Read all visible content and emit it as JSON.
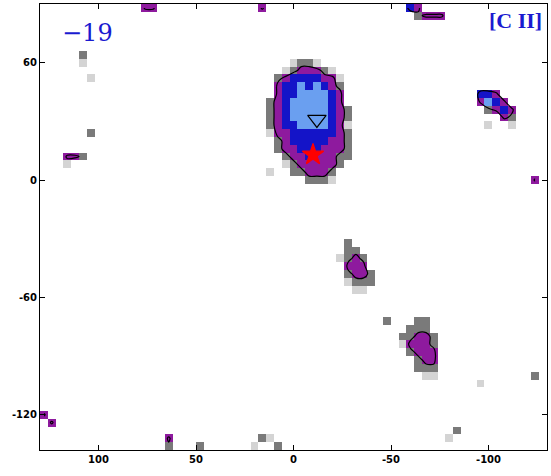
{
  "chart_data": {
    "type": "heatmap",
    "annotations": [
      "−19",
      "[C II]"
    ],
    "xlim": [
      130,
      -130
    ],
    "ylim": [
      -138,
      90
    ],
    "xticks": [
      100,
      50,
      0,
      -50,
      -100
    ],
    "yticks": [
      60,
      0,
      -60,
      -120
    ],
    "zlim": [
      0.5,
      5.5
    ],
    "contour_levels": [
      2.5
    ],
    "grid": false,
    "cells": [
      [
        0,
        60,
        1
      ],
      [
        -4,
        60,
        2
      ],
      [
        -8,
        60,
        2
      ],
      [
        -12,
        60,
        1
      ],
      [
        4,
        56,
        1
      ],
      [
        0,
        56,
        2
      ],
      [
        -4,
        56,
        3
      ],
      [
        -8,
        56,
        3
      ],
      [
        -12,
        56,
        3
      ],
      [
        -16,
        56,
        2
      ],
      [
        -20,
        56,
        1
      ],
      [
        8,
        52,
        2
      ],
      [
        4,
        52,
        3
      ],
      [
        0,
        52,
        4
      ],
      [
        -4,
        52,
        4
      ],
      [
        -8,
        52,
        4
      ],
      [
        -12,
        52,
        4
      ],
      [
        -16,
        52,
        3
      ],
      [
        -20,
        52,
        3
      ],
      [
        -24,
        52,
        1
      ],
      [
        8,
        48,
        3
      ],
      [
        4,
        48,
        4
      ],
      [
        0,
        48,
        4
      ],
      [
        -4,
        48,
        5
      ],
      [
        -8,
        48,
        4
      ],
      [
        -12,
        48,
        5
      ],
      [
        -16,
        48,
        4
      ],
      [
        -20,
        48,
        3
      ],
      [
        -24,
        48,
        2
      ],
      [
        8,
        44,
        3
      ],
      [
        4,
        44,
        4
      ],
      [
        0,
        44,
        4
      ],
      [
        -4,
        44,
        5
      ],
      [
        -8,
        44,
        5
      ],
      [
        -12,
        44,
        5
      ],
      [
        -16,
        44,
        5
      ],
      [
        -20,
        44,
        4
      ],
      [
        -24,
        44,
        3
      ],
      [
        12,
        40,
        2
      ],
      [
        8,
        40,
        3
      ],
      [
        4,
        40,
        4
      ],
      [
        0,
        40,
        5
      ],
      [
        -4,
        40,
        5
      ],
      [
        -8,
        40,
        5
      ],
      [
        -12,
        40,
        5
      ],
      [
        -16,
        40,
        5
      ],
      [
        -20,
        40,
        4
      ],
      [
        -24,
        40,
        3
      ],
      [
        12,
        36,
        2
      ],
      [
        8,
        36,
        3
      ],
      [
        4,
        36,
        4
      ],
      [
        0,
        36,
        5
      ],
      [
        -4,
        36,
        5
      ],
      [
        -8,
        36,
        5
      ],
      [
        -12,
        36,
        5
      ],
      [
        -16,
        36,
        5
      ],
      [
        -20,
        36,
        4
      ],
      [
        -24,
        36,
        3
      ],
      [
        -28,
        36,
        2
      ],
      [
        12,
        32,
        2
      ],
      [
        8,
        32,
        3
      ],
      [
        4,
        32,
        4
      ],
      [
        0,
        32,
        5
      ],
      [
        -4,
        32,
        5
      ],
      [
        -8,
        32,
        5
      ],
      [
        -12,
        32,
        5
      ],
      [
        -16,
        32,
        5
      ],
      [
        -20,
        32,
        4
      ],
      [
        -24,
        32,
        3
      ],
      [
        -28,
        32,
        2
      ],
      [
        12,
        28,
        2
      ],
      [
        8,
        28,
        3
      ],
      [
        4,
        28,
        4
      ],
      [
        0,
        28,
        4
      ],
      [
        -4,
        28,
        5
      ],
      [
        -8,
        28,
        5
      ],
      [
        -12,
        28,
        5
      ],
      [
        -16,
        28,
        5
      ],
      [
        -20,
        28,
        4
      ],
      [
        -24,
        28,
        3
      ],
      [
        -28,
        28,
        1
      ],
      [
        12,
        24,
        1
      ],
      [
        8,
        24,
        3
      ],
      [
        4,
        24,
        3
      ],
      [
        0,
        24,
        4
      ],
      [
        -4,
        24,
        4
      ],
      [
        -8,
        24,
        4
      ],
      [
        -12,
        24,
        4
      ],
      [
        -16,
        24,
        4
      ],
      [
        -20,
        24,
        4
      ],
      [
        -24,
        24,
        3
      ],
      [
        -28,
        24,
        2
      ],
      [
        8,
        20,
        2
      ],
      [
        4,
        20,
        3
      ],
      [
        0,
        20,
        4
      ],
      [
        -4,
        20,
        4
      ],
      [
        -8,
        20,
        4
      ],
      [
        -12,
        20,
        4
      ],
      [
        -16,
        20,
        4
      ],
      [
        -20,
        20,
        3
      ],
      [
        -24,
        20,
        3
      ],
      [
        -28,
        20,
        2
      ],
      [
        8,
        16,
        2
      ],
      [
        4,
        16,
        3
      ],
      [
        0,
        16,
        3
      ],
      [
        -4,
        16,
        4
      ],
      [
        -8,
        16,
        4
      ],
      [
        -12,
        16,
        4
      ],
      [
        -16,
        16,
        3
      ],
      [
        -20,
        16,
        3
      ],
      [
        -24,
        16,
        3
      ],
      [
        -28,
        16,
        2
      ],
      [
        4,
        12,
        2
      ],
      [
        0,
        12,
        3
      ],
      [
        -4,
        12,
        3
      ],
      [
        -8,
        12,
        4
      ],
      [
        -12,
        12,
        3
      ],
      [
        -16,
        12,
        3
      ],
      [
        -20,
        12,
        3
      ],
      [
        -24,
        12,
        2
      ],
      [
        -28,
        12,
        2
      ],
      [
        4,
        8,
        1
      ],
      [
        0,
        8,
        2
      ],
      [
        -4,
        8,
        3
      ],
      [
        -8,
        8,
        3
      ],
      [
        -12,
        8,
        3
      ],
      [
        -16,
        8,
        3
      ],
      [
        -20,
        8,
        3
      ],
      [
        -24,
        8,
        2
      ],
      [
        12,
        4,
        1
      ],
      [
        0,
        4,
        2
      ],
      [
        -4,
        4,
        2
      ],
      [
        -8,
        4,
        3
      ],
      [
        -12,
        4,
        3
      ],
      [
        -16,
        4,
        3
      ],
      [
        -20,
        4,
        2
      ],
      [
        -8,
        0,
        2
      ],
      [
        -12,
        0,
        2
      ],
      [
        -16,
        0,
        2
      ],
      [
        -20,
        0,
        1
      ],
      [
        116,
        12,
        3
      ],
      [
        112,
        12,
        3
      ],
      [
        108,
        12,
        2
      ],
      [
        116,
        8,
        1
      ],
      [
        108,
        64,
        2
      ],
      [
        108,
        60,
        1
      ],
      [
        104,
        52,
        1
      ],
      [
        104,
        24,
        2
      ],
      [
        -28,
        -32,
        2
      ],
      [
        -28,
        -36,
        2
      ],
      [
        -32,
        -36,
        2
      ],
      [
        -24,
        -40,
        1
      ],
      [
        -28,
        -40,
        2
      ],
      [
        -32,
        -40,
        3
      ],
      [
        -36,
        -40,
        2
      ],
      [
        -28,
        -44,
        3
      ],
      [
        -32,
        -44,
        3
      ],
      [
        -36,
        -44,
        3
      ],
      [
        -28,
        -48,
        2
      ],
      [
        -32,
        -48,
        3
      ],
      [
        -36,
        -48,
        3
      ],
      [
        -40,
        -48,
        2
      ],
      [
        -28,
        -52,
        1
      ],
      [
        -32,
        -52,
        2
      ],
      [
        -36,
        -52,
        2
      ],
      [
        -40,
        -52,
        2
      ],
      [
        -32,
        -56,
        1
      ],
      [
        -36,
        -56,
        1
      ],
      [
        -48,
        -72,
        2
      ],
      [
        -64,
        -72,
        2
      ],
      [
        -68,
        -72,
        2
      ],
      [
        -60,
        -76,
        2
      ],
      [
        -64,
        -76,
        2
      ],
      [
        -68,
        -76,
        2
      ],
      [
        -56,
        -80,
        2
      ],
      [
        -60,
        -80,
        2
      ],
      [
        -64,
        -80,
        3
      ],
      [
        -68,
        -80,
        3
      ],
      [
        -72,
        -80,
        2
      ],
      [
        -56,
        -84,
        1
      ],
      [
        -60,
        -84,
        3
      ],
      [
        -64,
        -84,
        3
      ],
      [
        -68,
        -84,
        3
      ],
      [
        -72,
        -84,
        2
      ],
      [
        -60,
        -88,
        2
      ],
      [
        -64,
        -88,
        3
      ],
      [
        -68,
        -88,
        3
      ],
      [
        -72,
        -88,
        3
      ],
      [
        -64,
        -92,
        2
      ],
      [
        -68,
        -92,
        3
      ],
      [
        -72,
        -92,
        3
      ],
      [
        -64,
        -96,
        2
      ],
      [
        -68,
        -96,
        2
      ],
      [
        -72,
        -96,
        2
      ],
      [
        -68,
        -100,
        1
      ],
      [
        -72,
        -100,
        1
      ],
      [
        -96,
        44,
        4
      ],
      [
        -100,
        44,
        4
      ],
      [
        -104,
        44,
        3
      ],
      [
        -96,
        40,
        3
      ],
      [
        -100,
        40,
        5
      ],
      [
        -104,
        40,
        4
      ],
      [
        -108,
        40,
        3
      ],
      [
        -100,
        36,
        2
      ],
      [
        -104,
        36,
        3
      ],
      [
        -108,
        36,
        4
      ],
      [
        -112,
        36,
        3
      ],
      [
        -108,
        32,
        3
      ],
      [
        -112,
        32,
        2
      ],
      [
        -100,
        28,
        1
      ],
      [
        -112,
        28,
        1
      ],
      [
        76,
        88,
        3
      ],
      [
        72,
        88,
        3
      ],
      [
        16,
        88,
        3
      ],
      [
        -60,
        88,
        4
      ],
      [
        -64,
        88,
        3
      ],
      [
        -64,
        84,
        2
      ],
      [
        -68,
        84,
        3
      ],
      [
        -72,
        84,
        3
      ],
      [
        -76,
        84,
        3
      ],
      [
        -124,
        0,
        3
      ],
      [
        128,
        -120,
        3
      ],
      [
        124,
        -124,
        3
      ],
      [
        64,
        -132,
        3
      ],
      [
        64,
        -136,
        2
      ],
      [
        16,
        -132,
        2
      ],
      [
        12,
        -132,
        1
      ],
      [
        8,
        -136,
        2
      ],
      [
        20,
        -136,
        1
      ],
      [
        48,
        -136,
        2
      ],
      [
        -124,
        -100,
        2
      ],
      [
        -84,
        -128,
        2
      ],
      [
        -80,
        -132,
        1
      ],
      [
        -96,
        -104,
        1
      ]
    ],
    "markers": [
      {
        "x": -10,
        "y": 13,
        "marker": "star",
        "color": "red"
      },
      {
        "x": -12,
        "y": 31,
        "marker": "triangle-down-open",
        "color": "black"
      }
    ]
  }
}
